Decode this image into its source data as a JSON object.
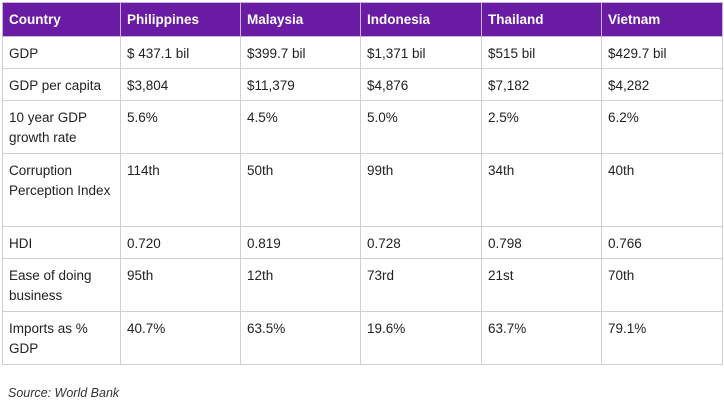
{
  "table": {
    "headers": [
      "Country",
      "Philippines",
      "Malaysia",
      "Indonesia",
      "Thailand",
      "Vietnam"
    ],
    "rows": [
      [
        "GDP",
        "$ 437.1 bil",
        "$399.7 bil",
        "$1,371 bil",
        "$515 bil",
        "$429.7 bil"
      ],
      [
        "GDP per capita",
        "$3,804",
        "$11,379",
        "$4,876",
        "$7,182",
        "$4,282"
      ],
      [
        "10 year GDP growth rate",
        "5.6%",
        "4.5%",
        "5.0%",
        "2.5%",
        "6.2%"
      ],
      [
        "Corruption Perception Index",
        "114th",
        "50th",
        "99th",
        "34th",
        "40th"
      ],
      [
        "HDI",
        "0.720",
        "0.819",
        "0.728",
        "0.798",
        "0.766"
      ],
      [
        "Ease of doing business",
        "95th",
        "12th",
        "73rd",
        "21st",
        "70th"
      ],
      [
        "Imports as % GDP",
        "40.7%",
        "63.5%",
        "19.6%",
        "63.7%",
        "79.1%"
      ]
    ]
  },
  "source": "Source: World Bank",
  "colors": {
    "header_bg": "#6a1ba3",
    "header_text": "#ffffff",
    "border": "#cfcfcf"
  }
}
